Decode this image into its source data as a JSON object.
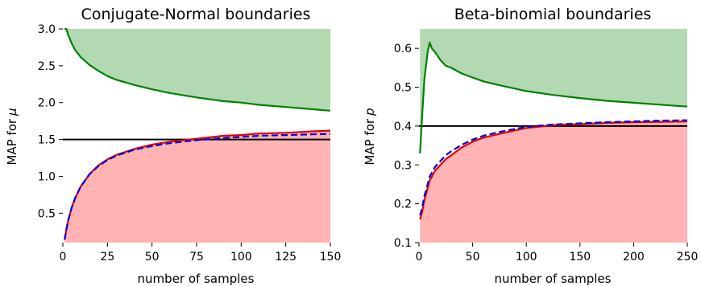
{
  "chart_data": [
    {
      "type": "line",
      "title": "Conjugate-Normal boundaries",
      "xlabel": "number of samples",
      "ylabel": "MAP for",
      "ylabel_symbol": "μ",
      "xlim": [
        0,
        150
      ],
      "ylim": [
        0.1,
        3.0
      ],
      "xticks": [
        "0",
        "25",
        "50",
        "75",
        "100",
        "125",
        "150"
      ],
      "yticks": [
        "0.5",
        "1.0",
        "1.5",
        "2.0",
        "2.5",
        "3.0"
      ],
      "threshold": 1.5,
      "x": [
        1,
        2,
        3,
        5,
        7,
        10,
        15,
        20,
        25,
        30,
        40,
        50,
        60,
        75,
        90,
        100,
        110,
        125,
        140,
        150
      ],
      "series": [
        {
          "role": "upper_boundary",
          "color": "#008000",
          "style": "solid",
          "values": [
            3.15,
            3.0,
            2.92,
            2.8,
            2.71,
            2.62,
            2.51,
            2.43,
            2.36,
            2.31,
            2.24,
            2.18,
            2.13,
            2.07,
            2.02,
            2.0,
            1.97,
            1.94,
            1.91,
            1.89
          ]
        },
        {
          "role": "lower_boundary",
          "color": "#e00000",
          "style": "solid",
          "values": [
            0.14,
            0.28,
            0.4,
            0.58,
            0.71,
            0.86,
            1.03,
            1.15,
            1.23,
            1.29,
            1.37,
            1.43,
            1.47,
            1.51,
            1.55,
            1.56,
            1.58,
            1.59,
            1.61,
            1.62
          ]
        },
        {
          "role": "lower_boundary_dashed",
          "color": "#0000e0",
          "style": "dashed",
          "values": [
            0.14,
            0.28,
            0.4,
            0.58,
            0.71,
            0.86,
            1.03,
            1.14,
            1.22,
            1.28,
            1.36,
            1.41,
            1.45,
            1.49,
            1.52,
            1.535,
            1.55,
            1.56,
            1.57,
            1.575
          ]
        }
      ]
    },
    {
      "type": "line",
      "title": "Beta-binomial boundaries",
      "xlabel": "number of samples",
      "ylabel": "MAP for",
      "ylabel_symbol": "p",
      "xlim": [
        0,
        250
      ],
      "ylim": [
        0.1,
        0.65
      ],
      "xticks": [
        "0",
        "50",
        "100",
        "150",
        "200",
        "250"
      ],
      "yticks": [
        "0.1",
        "0.2",
        "0.3",
        "0.4",
        "0.5",
        "0.6"
      ],
      "threshold": 0.4,
      "x": [
        1,
        3,
        5,
        8,
        10,
        12,
        15,
        20,
        25,
        30,
        40,
        50,
        60,
        75,
        100,
        125,
        150,
        175,
        200,
        225,
        250
      ],
      "series": [
        {
          "role": "upper_boundary",
          "color": "#008000",
          "style": "solid",
          "values": [
            0.33,
            0.43,
            0.52,
            0.59,
            0.615,
            0.6,
            0.59,
            0.57,
            0.555,
            0.55,
            0.535,
            0.525,
            0.515,
            0.505,
            0.49,
            0.48,
            0.472,
            0.465,
            0.46,
            0.455,
            0.45
          ]
        },
        {
          "role": "lower_boundary",
          "color": "#e00000",
          "style": "solid",
          "values": [
            0.16,
            0.18,
            0.21,
            0.24,
            0.26,
            0.27,
            0.285,
            0.3,
            0.315,
            0.325,
            0.345,
            0.36,
            0.37,
            0.38,
            0.395,
            0.402,
            0.405,
            0.408,
            0.41,
            0.411,
            0.412
          ]
        },
        {
          "role": "lower_boundary_dashed",
          "color": "#0000e0",
          "style": "dashed",
          "values": [
            0.17,
            0.19,
            0.22,
            0.25,
            0.27,
            0.28,
            0.295,
            0.31,
            0.325,
            0.335,
            0.352,
            0.365,
            0.375,
            0.385,
            0.398,
            0.404,
            0.407,
            0.41,
            0.412,
            0.414,
            0.415
          ]
        }
      ]
    }
  ]
}
